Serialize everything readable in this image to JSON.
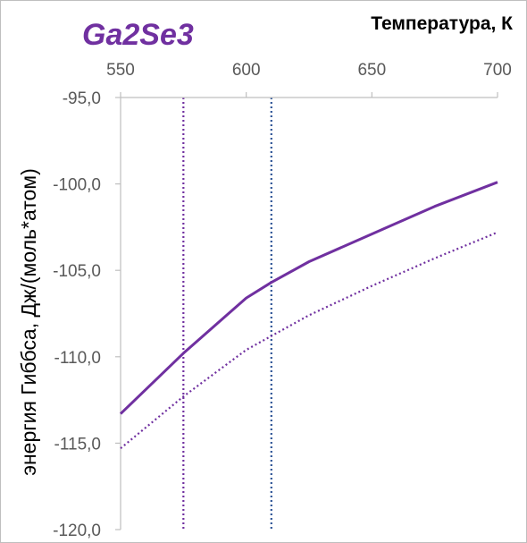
{
  "chart_data": {
    "type": "line",
    "title": "Ga2Se3",
    "xlabel": "Температура, К",
    "ylabel": "энергия Гиббса, Дж/(моль*атом)",
    "x_axis_position": "top",
    "xlim": [
      550,
      700
    ],
    "ylim": [
      -120,
      -95
    ],
    "x_ticks": [
      "550",
      "600",
      "650",
      "700"
    ],
    "y_ticks": [
      "-95,0",
      "-100,0",
      "-105,0",
      "-110,0",
      "-115,0",
      "-120,0"
    ],
    "grid": false,
    "legend": "none",
    "series": [
      {
        "style": "solid",
        "color": "#7030a0",
        "x": [
          550,
          575,
          600,
          610,
          625,
          650,
          675,
          700
        ],
        "y": [
          -113.3,
          -109.8,
          -106.6,
          -105.7,
          -104.5,
          -102.9,
          -101.3,
          -99.9
        ]
      },
      {
        "style": "dotted",
        "color": "#7030a0",
        "x": [
          550,
          575,
          600,
          610,
          625,
          650,
          675,
          700
        ],
        "y": [
          -115.3,
          -112.3,
          -109.6,
          -108.8,
          -107.6,
          -105.9,
          -104.3,
          -102.8
        ]
      }
    ],
    "vertical_lines": [
      {
        "x": 575,
        "style": "dotted",
        "color": "#7030a0"
      },
      {
        "x": 610,
        "style": "dotted",
        "color": "#2f5597"
      }
    ]
  }
}
